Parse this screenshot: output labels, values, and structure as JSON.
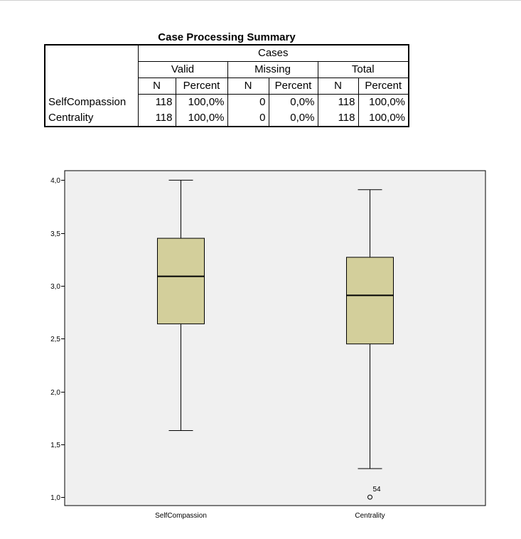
{
  "table": {
    "title": "Case Processing Summary",
    "cases_header": "Cases",
    "groups": [
      "Valid",
      "Missing",
      "Total"
    ],
    "columns": [
      "N",
      "Percent",
      "N",
      "Percent",
      "N",
      "Percent"
    ],
    "rows": [
      {
        "label": "SelfCompassion",
        "values": [
          "118",
          "100,0%",
          "0",
          "0,0%",
          "118",
          "100,0%"
        ]
      },
      {
        "label": "Centrality",
        "values": [
          "118",
          "100,0%",
          "0",
          "0,0%",
          "118",
          "100,0%"
        ]
      }
    ]
  },
  "chart_data": {
    "type": "boxplot",
    "categories": [
      "SelfCompassion",
      "Centrality"
    ],
    "series": [
      {
        "name": "SelfCompassion",
        "min": 1.63,
        "q1": 2.64,
        "median": 3.09,
        "q3": 3.45,
        "max": 4.0,
        "outliers": []
      },
      {
        "name": "Centrality",
        "min": 1.27,
        "q1": 2.45,
        "median": 2.91,
        "q3": 3.27,
        "max": 3.91,
        "outliers": [
          {
            "value": 1.0,
            "label": "54"
          }
        ]
      }
    ],
    "yticks": [
      "1,0",
      "1,5",
      "2,0",
      "2,5",
      "3,0",
      "3,5",
      "4,0"
    ],
    "ytick_values": [
      1.0,
      1.5,
      2.0,
      2.5,
      3.0,
      3.5,
      4.0
    ],
    "ylim": [
      0.92,
      4.09
    ],
    "box_color": "#d3cf9b",
    "plot_background": "#f0f0f0"
  }
}
